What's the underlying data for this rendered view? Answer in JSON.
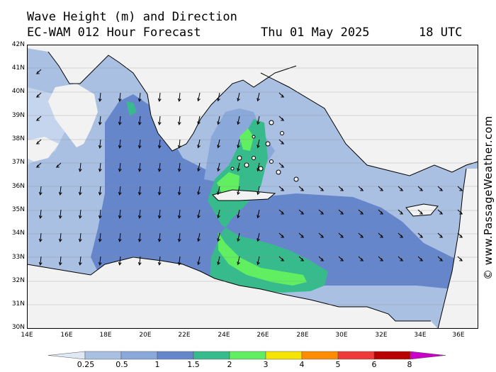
{
  "header": {
    "title": "Wave Height (m) and Direction",
    "model": "EC-WAM 012 Hour Forecast",
    "date": "Thu 01 May 2025",
    "time": "18 UTC"
  },
  "credit": "© www.PassageWeather.com",
  "axes": {
    "lat_labels": [
      "42N",
      "41N",
      "40N",
      "39N",
      "38N",
      "37N",
      "36N",
      "35N",
      "34N",
      "33N",
      "32N",
      "31N",
      "30N"
    ],
    "lon_labels": [
      "14E",
      "16E",
      "18E",
      "20E",
      "22E",
      "24E",
      "26E",
      "28E",
      "30E",
      "32E",
      "34E",
      "36E"
    ]
  },
  "legend": {
    "labels": [
      "0.25",
      "0.5",
      "1",
      "1.5",
      "2",
      "3",
      "4",
      "5",
      "6",
      "8"
    ],
    "colors": [
      "#e1e8f5",
      "#a9c0e3",
      "#8aa8da",
      "#6686cb",
      "#38bb8c",
      "#62ee61",
      "#f5e400",
      "#ff8c00",
      "#ee3a3a",
      "#b80000",
      "#c800c8"
    ]
  },
  "colors": {
    "land": "#f2f2f2",
    "sea_low": "#a9c0e3",
    "sea_mid": "#6686cb",
    "sea_high": "#38bb8c",
    "sea_peak": "#62ee61"
  }
}
